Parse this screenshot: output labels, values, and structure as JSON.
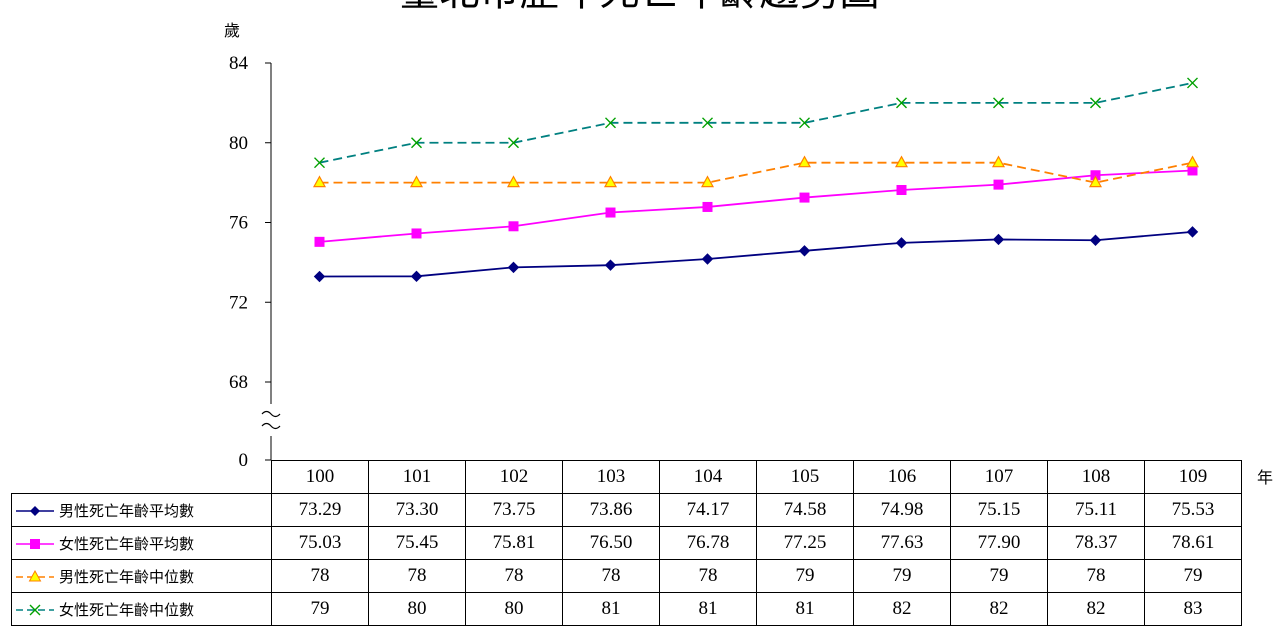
{
  "chart_data": {
    "type": "line",
    "title": "臺北市歷年死亡年齡趨勢圖",
    "ylabel": "歲",
    "xlabel": "年",
    "ylim": [
      68,
      84
    ],
    "yticks": [
      0,
      68,
      72,
      76,
      80,
      84
    ],
    "y_axis_break": true,
    "categories": [
      "100",
      "101",
      "102",
      "103",
      "104",
      "105",
      "106",
      "107",
      "108",
      "109"
    ],
    "grid": false,
    "legend_position": "data-table-left",
    "series": [
      {
        "name": "男性死亡年齡平均數",
        "color": "#000080",
        "marker": "diamond",
        "dash": "solid",
        "values": [
          73.29,
          73.3,
          73.75,
          73.86,
          74.17,
          74.58,
          74.98,
          75.15,
          75.11,
          75.53
        ],
        "labels": [
          "73.29",
          "73.30",
          "73.75",
          "73.86",
          "74.17",
          "74.58",
          "74.98",
          "75.15",
          "75.11",
          "75.53"
        ]
      },
      {
        "name": "女性死亡年齡平均數",
        "color": "#ff00ff",
        "marker": "square",
        "dash": "solid",
        "values": [
          75.03,
          75.45,
          75.81,
          76.5,
          76.78,
          77.25,
          77.63,
          77.9,
          78.37,
          78.61
        ],
        "labels": [
          "75.03",
          "75.45",
          "75.81",
          "76.50",
          "76.78",
          "77.25",
          "77.63",
          "77.90",
          "78.37",
          "78.61"
        ]
      },
      {
        "name": "男性死亡年齡中位數",
        "color": "#ff8000",
        "marker": "triangle",
        "dash": "dashed",
        "values": [
          78,
          78,
          78,
          78,
          78,
          79,
          79,
          79,
          78,
          79
        ],
        "labels": [
          "78",
          "78",
          "78",
          "78",
          "78",
          "79",
          "79",
          "79",
          "78",
          "79"
        ]
      },
      {
        "name": "女性死亡年齡中位數",
        "color": "#008080",
        "marker": "x",
        "dash": "dashed",
        "values": [
          79,
          80,
          80,
          81,
          81,
          81,
          82,
          82,
          82,
          83
        ],
        "labels": [
          "79",
          "80",
          "80",
          "81",
          "81",
          "81",
          "82",
          "82",
          "82",
          "83"
        ]
      }
    ]
  }
}
